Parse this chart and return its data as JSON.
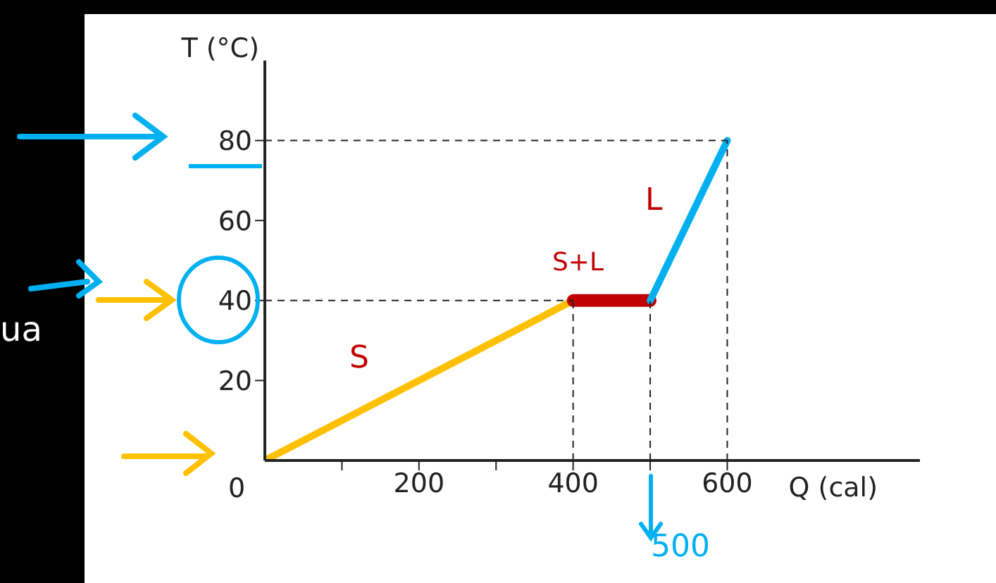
{
  "chart_data": {
    "type": "line",
    "xlabel": "Q (cal)",
    "ylabel": "T (°C)",
    "series": [
      {
        "color": "#ffc000",
        "x": [
          0,
          400
        ],
        "values": [
          0,
          40
        ]
      },
      {
        "color": "#c00000",
        "x": [
          400,
          500
        ],
        "values": [
          40,
          40
        ]
      },
      {
        "color": "#00b0f0",
        "x": [
          500,
          600
        ],
        "values": [
          40,
          80
        ]
      }
    ],
    "xlim": [
      0,
      850
    ],
    "xticks": [
      200,
      400,
      {
        "value": 100,
        "label": null
      },
      {
        "value": 300,
        "label": null
      },
      {
        "value": 500,
        "label": null
      },
      600
    ],
    "ylim": [
      0,
      100
    ],
    "yticks": [
      20,
      40,
      60,
      80
    ],
    "ref_lines": [
      {
        "axis": "y",
        "value": 80,
        "line_style": "dashed",
        "color": "#222222"
      },
      {
        "axis": "y",
        "value": 40,
        "line_style": "dashed",
        "color": "#222222"
      },
      {
        "axis": "x",
        "value": 400,
        "line_style": "dashed",
        "color": "#222222"
      },
      {
        "axis": "x",
        "value": 500,
        "line_style": "dashed",
        "color": "#222222"
      },
      {
        "axis": "x",
        "value": 600,
        "line_style": "dashed",
        "color": "#222222"
      }
    ],
    "annotations": [
      "S",
      "S+L",
      "L",
      "0",
      "500",
      "ua"
    ],
    "marker": "none",
    "line_style": "solid"
  }
}
